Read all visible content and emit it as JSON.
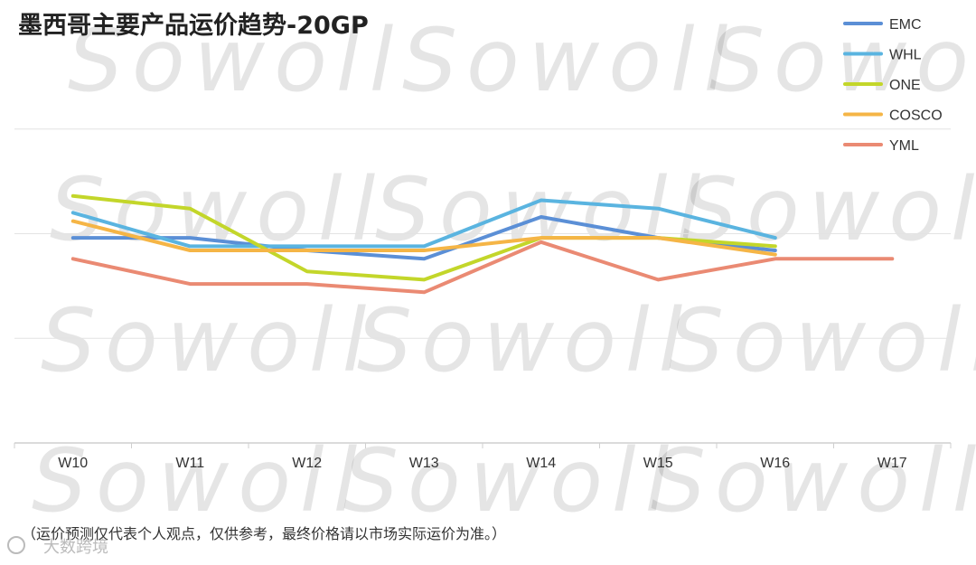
{
  "chart_data": {
    "type": "line",
    "title": "墨西哥主要产品运价趋势-20GP",
    "categories": [
      "W10",
      "W11",
      "W12",
      "W13",
      "W14",
      "W15",
      "W16",
      "W17"
    ],
    "ylim": [
      0,
      100
    ],
    "grid": true,
    "legend_position": "top-right",
    "series": [
      {
        "name": "EMC",
        "color": "#5b8fd6",
        "values": [
          49,
          49,
          46,
          44,
          54,
          49,
          46,
          null
        ]
      },
      {
        "name": "WHL",
        "color": "#5ab4e0",
        "values": [
          55,
          47,
          47,
          47,
          58,
          56,
          49,
          null
        ]
      },
      {
        "name": "ONE",
        "color": "#c3d62a",
        "values": [
          59,
          56,
          41,
          39,
          49,
          49,
          47,
          null
        ]
      },
      {
        "name": "COSCO",
        "color": "#f5b546",
        "values": [
          53,
          46,
          46,
          46,
          49,
          49,
          45,
          null
        ]
      },
      {
        "name": "YML",
        "color": "#ea8a73",
        "values": [
          44,
          38,
          38,
          36,
          48,
          39,
          44,
          44
        ]
      }
    ]
  },
  "footnote": "（运价预测仅代表个人观点，仅供参考，最终价格请以市场实际运价为准。）",
  "watermark": {
    "text": "Sowoll"
  },
  "source_badge": {
    "text": "大数跨境"
  }
}
